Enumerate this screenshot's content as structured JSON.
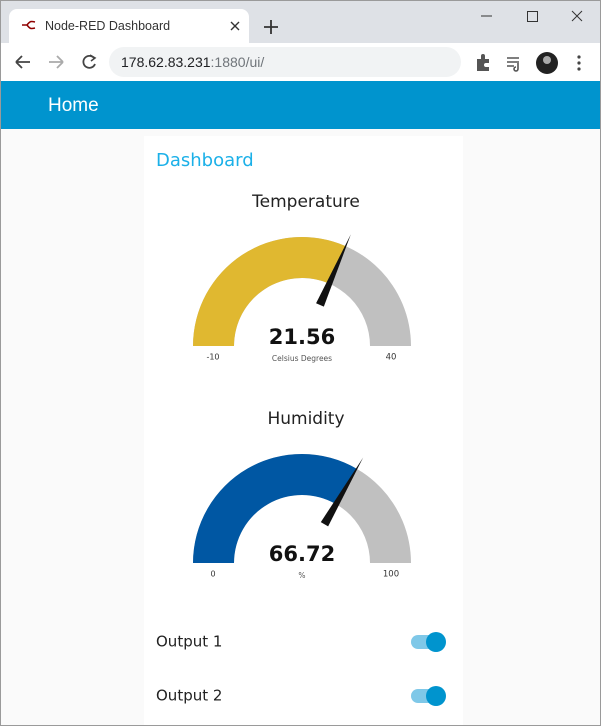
{
  "browser": {
    "tab_title": "Node-RED Dashboard",
    "url_host": "178.62.83.231",
    "url_path": ":1880/ui/"
  },
  "header": {
    "title": "Home"
  },
  "group": {
    "title": "Dashboard"
  },
  "gauges": [
    {
      "title": "Temperature",
      "value": 21.56,
      "min": -10,
      "max": 40,
      "units": "Celsius Degrees",
      "color": "#e0b830"
    },
    {
      "title": "Humidity",
      "value": 66.72,
      "min": 0,
      "max": 100,
      "units": "%",
      "color": "#0057a3"
    }
  ],
  "switches": [
    {
      "label": "Output 1",
      "on": true
    },
    {
      "label": "Output 2",
      "on": true
    }
  ]
}
